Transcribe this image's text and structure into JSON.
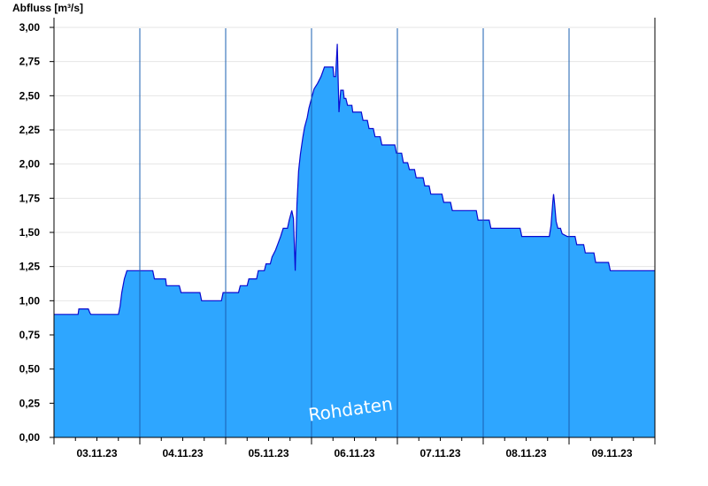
{
  "chart_data": {
    "type": "area",
    "ylabel": "Abfluss [m³/s]",
    "ylim": [
      0,
      3
    ],
    "yticks": [
      "0,00",
      "0,25",
      "0,50",
      "0,75",
      "1,00",
      "1,25",
      "1,50",
      "1,75",
      "2,00",
      "2,25",
      "2,50",
      "2,75",
      "3,00"
    ],
    "xlim": [
      0,
      7
    ],
    "day_boundaries": [
      1,
      2,
      3,
      4,
      5,
      6
    ],
    "xticks": [
      "03.11.23",
      "04.11.23",
      "05.11.23",
      "06.11.23",
      "07.11.23",
      "08.11.23",
      "09.11.23"
    ],
    "grid": true,
    "watermark": "Rohdaten",
    "colors": {
      "fill": "#2ea6ff",
      "line": "#0a0ad0",
      "grid": "#e6e6e6",
      "axis": "#000000",
      "divider": "#1a5fb0"
    },
    "x_unit": "days since 03.11.23 00:00",
    "series": [
      {
        "values": [
          [
            0.0,
            0.9
          ],
          [
            0.28,
            0.9
          ],
          [
            0.29,
            0.94
          ],
          [
            0.4,
            0.94
          ],
          [
            0.42,
            0.91
          ],
          [
            0.43,
            0.9
          ],
          [
            0.75,
            0.9
          ],
          [
            0.77,
            0.96
          ],
          [
            0.79,
            1.06
          ],
          [
            0.82,
            1.16
          ],
          [
            0.85,
            1.22
          ],
          [
            1.15,
            1.22
          ],
          [
            1.17,
            1.16
          ],
          [
            1.3,
            1.16
          ],
          [
            1.31,
            1.11
          ],
          [
            1.46,
            1.11
          ],
          [
            1.48,
            1.06
          ],
          [
            1.7,
            1.06
          ],
          [
            1.72,
            1.0
          ],
          [
            1.95,
            1.0
          ],
          [
            1.97,
            1.06
          ],
          [
            2.15,
            1.06
          ],
          [
            2.17,
            1.11
          ],
          [
            2.25,
            1.11
          ],
          [
            2.27,
            1.16
          ],
          [
            2.36,
            1.16
          ],
          [
            2.38,
            1.22
          ],
          [
            2.45,
            1.22
          ],
          [
            2.47,
            1.27
          ],
          [
            2.52,
            1.27
          ],
          [
            2.54,
            1.32
          ],
          [
            2.58,
            1.37
          ],
          [
            2.61,
            1.42
          ],
          [
            2.64,
            1.47
          ],
          [
            2.67,
            1.53
          ],
          [
            2.72,
            1.53
          ],
          [
            2.74,
            1.59
          ],
          [
            2.77,
            1.66
          ],
          [
            2.79,
            1.6
          ],
          [
            2.81,
            1.22
          ],
          [
            2.83,
            1.7
          ],
          [
            2.85,
            1.95
          ],
          [
            2.87,
            2.07
          ],
          [
            2.9,
            2.2
          ],
          [
            2.92,
            2.27
          ],
          [
            2.95,
            2.34
          ],
          [
            2.97,
            2.41
          ],
          [
            3.0,
            2.48
          ],
          [
            3.03,
            2.55
          ],
          [
            3.07,
            2.59
          ],
          [
            3.11,
            2.64
          ],
          [
            3.15,
            2.71
          ],
          [
            3.25,
            2.71
          ],
          [
            3.26,
            2.64
          ],
          [
            3.28,
            2.64
          ],
          [
            3.3,
            2.88
          ],
          [
            3.32,
            2.38
          ],
          [
            3.34,
            2.54
          ],
          [
            3.37,
            2.54
          ],
          [
            3.38,
            2.48
          ],
          [
            3.4,
            2.48
          ],
          [
            3.42,
            2.43
          ],
          [
            3.47,
            2.43
          ],
          [
            3.48,
            2.38
          ],
          [
            3.58,
            2.38
          ],
          [
            3.6,
            2.32
          ],
          [
            3.65,
            2.32
          ],
          [
            3.67,
            2.26
          ],
          [
            3.72,
            2.26
          ],
          [
            3.74,
            2.2
          ],
          [
            3.8,
            2.2
          ],
          [
            3.82,
            2.14
          ],
          [
            3.97,
            2.14
          ],
          [
            3.99,
            2.08
          ],
          [
            4.05,
            2.08
          ],
          [
            4.07,
            2.01
          ],
          [
            4.12,
            2.01
          ],
          [
            4.14,
            1.96
          ],
          [
            4.2,
            1.96
          ],
          [
            4.22,
            1.9
          ],
          [
            4.3,
            1.9
          ],
          [
            4.32,
            1.84
          ],
          [
            4.37,
            1.84
          ],
          [
            4.39,
            1.78
          ],
          [
            4.52,
            1.78
          ],
          [
            4.54,
            1.72
          ],
          [
            4.62,
            1.72
          ],
          [
            4.64,
            1.66
          ],
          [
            4.92,
            1.66
          ],
          [
            4.94,
            1.59
          ],
          [
            5.07,
            1.59
          ],
          [
            5.09,
            1.53
          ],
          [
            5.43,
            1.53
          ],
          [
            5.45,
            1.47
          ],
          [
            5.77,
            1.47
          ],
          [
            5.79,
            1.55
          ],
          [
            5.81,
            1.72
          ],
          [
            5.82,
            1.78
          ],
          [
            5.83,
            1.72
          ],
          [
            5.85,
            1.58
          ],
          [
            5.87,
            1.53
          ],
          [
            5.9,
            1.53
          ],
          [
            5.92,
            1.49
          ],
          [
            5.98,
            1.47
          ],
          [
            6.0,
            1.47
          ],
          [
            6.07,
            1.47
          ],
          [
            6.09,
            1.41
          ],
          [
            6.17,
            1.41
          ],
          [
            6.19,
            1.35
          ],
          [
            6.29,
            1.35
          ],
          [
            6.31,
            1.28
          ],
          [
            6.46,
            1.28
          ],
          [
            6.48,
            1.22
          ],
          [
            7.0,
            1.22
          ]
        ]
      }
    ]
  }
}
